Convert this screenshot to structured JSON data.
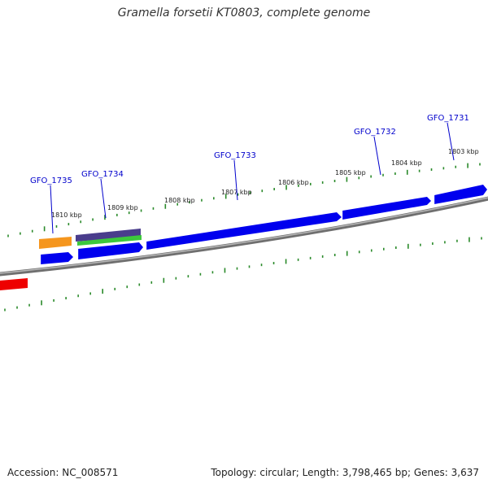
{
  "title": "Gramella forsetii KT0803, complete genome",
  "footer": {
    "accession": "Accession: NC_008571",
    "summary": "Topology: circular; Length: 3,798,465 bp; Genes: 3,637"
  },
  "ticks": [
    "1810 kbp",
    "1809 kbp",
    "1808 kbp",
    "1807 kbp",
    "1806 kbp",
    "1805 kbp",
    "1804 kbp",
    "1803 kbp"
  ],
  "genes": [
    {
      "name": "GFO_1735"
    },
    {
      "name": "GFO_1734"
    },
    {
      "name": "GFO_1733"
    },
    {
      "name": "GFO_1732"
    },
    {
      "name": "GFO_1731"
    }
  ],
  "colors": {
    "forward_cds": "#0000ee",
    "orange_feature": "#f5961e",
    "purple_feature": "#4a3d8c",
    "green_feature": "#3cc83c",
    "red_feature": "#ee0000",
    "backbone": "#8a8a8a",
    "tick_marks": "#2a8a2a",
    "gene_label": "#0000cc"
  }
}
